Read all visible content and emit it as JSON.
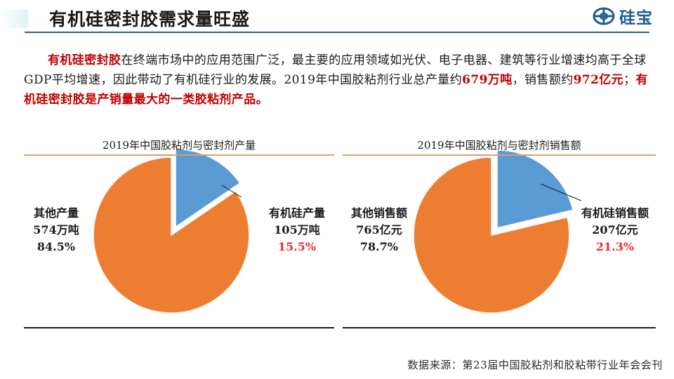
{
  "header": {
    "title": "有机硅密封胶需求量旺盛",
    "logo_text": "硅宝",
    "logo_icon": "silicone-logo-icon"
  },
  "intro": {
    "p1_hl": "有机硅密封胶",
    "p1_rest": "在终端市场中的应用范围广泛，最主要的应用领域如光伏、电子电器、建筑等行业增速均高于全球GDP平均增速，因此带动了有机硅行业的发展。2019年中国胶粘剂行业总产量约",
    "p1_num1": "679万吨",
    "p1_mid": "，销售额约",
    "p1_num2": "972亿元",
    "p1_sep": "；",
    "p1_tail": "有机硅密封胶是产销量最大的一类胶粘剂产品。"
  },
  "colors": {
    "blue_slice": "#5b9bd5",
    "orange_slice": "#ed7d31",
    "highlight_red": "#c00000",
    "title_rule": "#2b5e8e"
  },
  "chart_data": [
    {
      "type": "pie",
      "title": "2019年中国胶粘剂与密封剂产量",
      "slices": [
        {
          "name": "有机硅产量",
          "value": 105,
          "value_label": "105万吨",
          "percent_label": "15.5%",
          "color": "#5b9bd5",
          "exploded": true
        },
        {
          "name": "其他产量",
          "value": 574,
          "value_label": "574万吨",
          "percent_label": "84.5%",
          "color": "#ed7d31",
          "exploded": false
        }
      ]
    },
    {
      "type": "pie",
      "title": "2019年中国胶粘剂与密封剂销售额",
      "slices": [
        {
          "name": "有机硅销售额",
          "value": 207,
          "value_label": "207亿元",
          "percent_label": "21.3%",
          "color": "#5b9bd5",
          "exploded": true
        },
        {
          "name": "其他销售额",
          "value": 765,
          "value_label": "765亿元",
          "percent_label": "78.7%",
          "color": "#ed7d31",
          "exploded": false
        }
      ]
    }
  ],
  "footer": {
    "source": "数据来源：第23届中国胶粘剂和胶粘带行业年会会刊"
  }
}
